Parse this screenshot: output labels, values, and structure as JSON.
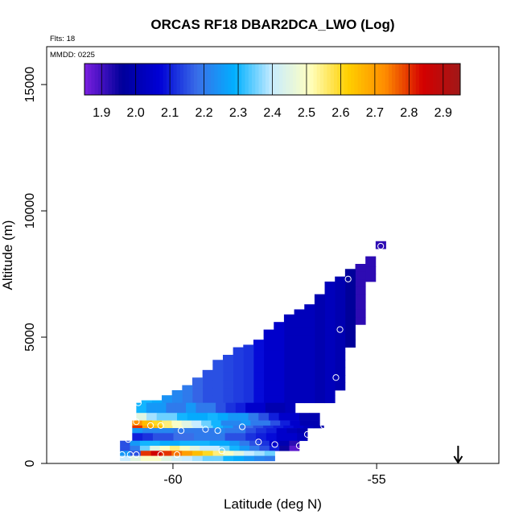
{
  "chart_data": {
    "type": "heatmap",
    "title": "ORCAS RF18 DBAR2DCA_LWO (Log)",
    "flights_label": "Flts: 18",
    "date_label": "MMDD: 0225",
    "xlabel": "Latitude (deg N)",
    "ylabel": "Altitude (m)",
    "xlim": [
      -63.1,
      -52.0
    ],
    "ylim": [
      0,
      16500
    ],
    "x_ticks": [
      {
        "value": -60,
        "label": "-60"
      },
      {
        "value": -55,
        "label": "-55"
      }
    ],
    "y_ticks": [
      {
        "value": 0,
        "label": "0"
      },
      {
        "value": 5000,
        "label": "5000"
      },
      {
        "value": 10000,
        "label": "10000"
      },
      {
        "value": 15000,
        "label": "15000"
      }
    ],
    "colorbar": {
      "min": 1.85,
      "max": 2.95,
      "ticks": [
        "1.9",
        "2.0",
        "2.1",
        "2.2",
        "2.3",
        "2.4",
        "2.5",
        "2.6",
        "2.7",
        "2.8",
        "2.9"
      ],
      "tick_values": [
        1.9,
        2.0,
        2.1,
        2.2,
        2.3,
        2.4,
        2.5,
        2.6,
        2.7,
        2.8,
        2.9
      ],
      "colors": [
        "#7b1fe0",
        "#00009a",
        "#0000d6",
        "#3a6ee8",
        "#00b0ff",
        "#c8ecff",
        "#ffffc0",
        "#ffd000",
        "#ff8c00",
        "#d40000",
        "#a01818"
      ]
    },
    "cell_size": {
      "dlat": 0.25,
      "dalt": 300
    },
    "columns": [
      {
        "lat": -54.9,
        "bot": 8500,
        "top": 8800,
        "v": 1.92
      },
      {
        "lat": -55.15,
        "bot": 7200,
        "top": 8200,
        "v": 1.92
      },
      {
        "lat": -55.4,
        "bot": 5500,
        "top": 7900,
        "v": 1.92
      },
      {
        "lat": -55.65,
        "bot": 4600,
        "top": 7700,
        "v": 1.96
      },
      {
        "lat": -55.9,
        "bot": 2900,
        "top": 7400,
        "v": 2.0
      },
      {
        "lat": -56.15,
        "bot": 2400,
        "top": 7200,
        "v": 2.02
      },
      {
        "lat": -56.4,
        "bot": 2400,
        "top": 6700,
        "v": 2.0
      },
      {
        "lat": -56.65,
        "bot": 2400,
        "top": 6300,
        "v": 2.02
      },
      {
        "lat": -56.9,
        "bot": 2400,
        "top": 6100,
        "v": 2.02
      },
      {
        "lat": -57.15,
        "bot": 2400,
        "top": 5900,
        "v": 2.02
      },
      {
        "lat": -57.4,
        "bot": 2400,
        "top": 5600,
        "v": 2.05
      },
      {
        "lat": -57.65,
        "bot": 2400,
        "top": 5300,
        "v": 2.05
      },
      {
        "lat": -57.9,
        "bot": 2400,
        "top": 4900,
        "v": 2.08
      },
      {
        "lat": -58.15,
        "bot": 2400,
        "top": 4700,
        "v": 2.12
      },
      {
        "lat": -58.4,
        "bot": 2400,
        "top": 4600,
        "v": 2.13
      },
      {
        "lat": -58.65,
        "bot": 2400,
        "top": 4300,
        "v": 2.14
      },
      {
        "lat": -58.9,
        "bot": 2400,
        "top": 4100,
        "v": 2.15
      },
      {
        "lat": -59.15,
        "bot": 2400,
        "top": 3700,
        "v": 2.15
      },
      {
        "lat": -59.4,
        "bot": 2400,
        "top": 3400,
        "v": 2.17
      },
      {
        "lat": -59.65,
        "bot": 2400,
        "top": 3100,
        "v": 2.2
      },
      {
        "lat": -59.9,
        "bot": 2400,
        "top": 2900,
        "v": 2.22
      },
      {
        "lat": -60.15,
        "bot": 2400,
        "top": 2700,
        "v": 2.24
      },
      {
        "lat": -60.4,
        "bot": 2400,
        "top": 2500,
        "v": 2.28
      },
      {
        "lat": -60.65,
        "bot": 2400,
        "top": 2500,
        "v": 2.3
      }
    ],
    "bands": [
      {
        "lat0": -60.9,
        "lat1": -57.0,
        "bot": 2000,
        "top": 2400,
        "values": [
          2.3,
          2.25,
          2.25,
          2.2,
          2.2,
          2.25,
          2.2,
          2.2,
          2.15,
          2.12,
          2.1,
          2.05,
          2.05,
          2.0,
          2.0,
          2.02
        ]
      },
      {
        "lat0": -60.9,
        "lat1": -56.4,
        "bot": 1700,
        "top": 2000,
        "values": [
          2.45,
          2.38,
          2.35,
          2.35,
          2.3,
          2.28,
          2.28,
          2.3,
          2.28,
          2.25,
          2.25,
          2.2,
          2.15,
          2.1,
          2.05,
          2.05,
          2.0,
          2.0
        ]
      },
      {
        "lat0": -61.0,
        "lat1": -56.4,
        "bot": 1500,
        "top": 1700,
        "values": [
          2.72,
          2.65,
          2.6,
          2.55,
          2.5,
          2.45,
          2.4,
          2.35,
          2.3,
          2.22,
          2.22,
          2.25,
          2.2,
          2.2,
          2.15,
          2.1,
          2.05,
          2.0,
          2.0
        ]
      },
      {
        "lat0": -61.0,
        "lat1": -56.3,
        "bot": 1400,
        "top": 1500,
        "values": [
          2.8,
          2.7,
          2.65,
          2.55,
          2.5,
          2.45,
          2.4,
          2.35,
          2.3,
          2.25,
          2.2,
          2.18,
          2.15,
          2.12,
          2.1,
          2.08,
          2.05,
          2.02,
          2.0
        ]
      },
      {
        "lat0": -61.0,
        "lat1": -56.7,
        "bot": 1200,
        "top": 1400,
        "values": [
          2.25,
          2.22,
          2.22,
          2.22,
          2.2,
          2.2,
          2.2,
          2.2,
          2.22,
          2.2,
          2.2,
          2.15,
          2.12,
          2.1,
          2.05,
          2.02,
          2.0
        ]
      },
      {
        "lat0": -61.0,
        "lat1": -56.7,
        "bot": 900,
        "top": 1200,
        "values": [
          2.1,
          2.12,
          2.15,
          2.15,
          2.18,
          2.18,
          2.2,
          2.2,
          2.2,
          2.15,
          2.15,
          2.12,
          2.1,
          2.08,
          2.05,
          2.05,
          2.02
        ]
      },
      {
        "lat0": -61.3,
        "lat1": -56.9,
        "bot": 700,
        "top": 900,
        "values": [
          2.15,
          2.25,
          2.3,
          2.3,
          2.28,
          2.28,
          2.3,
          2.3,
          2.3,
          2.28,
          2.28,
          2.25,
          2.2,
          2.15,
          2.12,
          2.05,
          2.0,
          1.92
        ]
      },
      {
        "lat0": -61.3,
        "lat1": -56.9,
        "bot": 500,
        "top": 700,
        "values": [
          2.15,
          2.2,
          2.35,
          2.45,
          2.5,
          2.55,
          2.5,
          2.45,
          2.4,
          2.4,
          2.35,
          2.3,
          2.25,
          2.2,
          2.15,
          2.1,
          1.95,
          1.88
        ]
      },
      {
        "lat0": -61.3,
        "lat1": -57.5,
        "bot": 300,
        "top": 500,
        "values": [
          2.25,
          2.15,
          2.8,
          2.85,
          2.8,
          2.75,
          2.7,
          2.65,
          2.6,
          2.55,
          2.5,
          2.45,
          2.4,
          2.38,
          2.35
        ]
      },
      {
        "lat0": -61.3,
        "lat1": -57.5,
        "bot": 100,
        "top": 300,
        "values": [
          2.4,
          2.45,
          2.5,
          2.5,
          2.45,
          2.42,
          2.4,
          2.38,
          2.35,
          2.35,
          2.3,
          2.28,
          2.25,
          2.22,
          2.2
        ]
      }
    ],
    "markers": [
      {
        "lat": -54.9,
        "alt": 8600
      },
      {
        "lat": -55.7,
        "alt": 7300
      },
      {
        "lat": -55.9,
        "alt": 5300
      },
      {
        "lat": -56.0,
        "alt": 3400
      },
      {
        "lat": -56.3,
        "alt": 1500
      },
      {
        "lat": -56.5,
        "alt": 1200
      },
      {
        "lat": -56.7,
        "alt": 1150
      },
      {
        "lat": -56.9,
        "alt": 700
      },
      {
        "lat": -57.5,
        "alt": 750
      },
      {
        "lat": -57.9,
        "alt": 850
      },
      {
        "lat": -58.3,
        "alt": 1450
      },
      {
        "lat": -58.9,
        "alt": 1300
      },
      {
        "lat": -59.2,
        "alt": 1350
      },
      {
        "lat": -59.8,
        "alt": 1300
      },
      {
        "lat": -60.3,
        "alt": 1500
      },
      {
        "lat": -60.55,
        "alt": 1500
      },
      {
        "lat": -60.9,
        "alt": 1650
      },
      {
        "lat": -60.85,
        "alt": 2400
      },
      {
        "lat": -61.1,
        "alt": 950
      },
      {
        "lat": -61.25,
        "alt": 350
      },
      {
        "lat": -61.05,
        "alt": 350
      },
      {
        "lat": -60.9,
        "alt": 350
      },
      {
        "lat": -58.8,
        "alt": 500
      },
      {
        "lat": -59.9,
        "alt": 350
      },
      {
        "lat": -60.3,
        "alt": 350
      }
    ],
    "arrow": {
      "lat": -53.0,
      "alt_from": 700,
      "alt_to": 0
    }
  }
}
